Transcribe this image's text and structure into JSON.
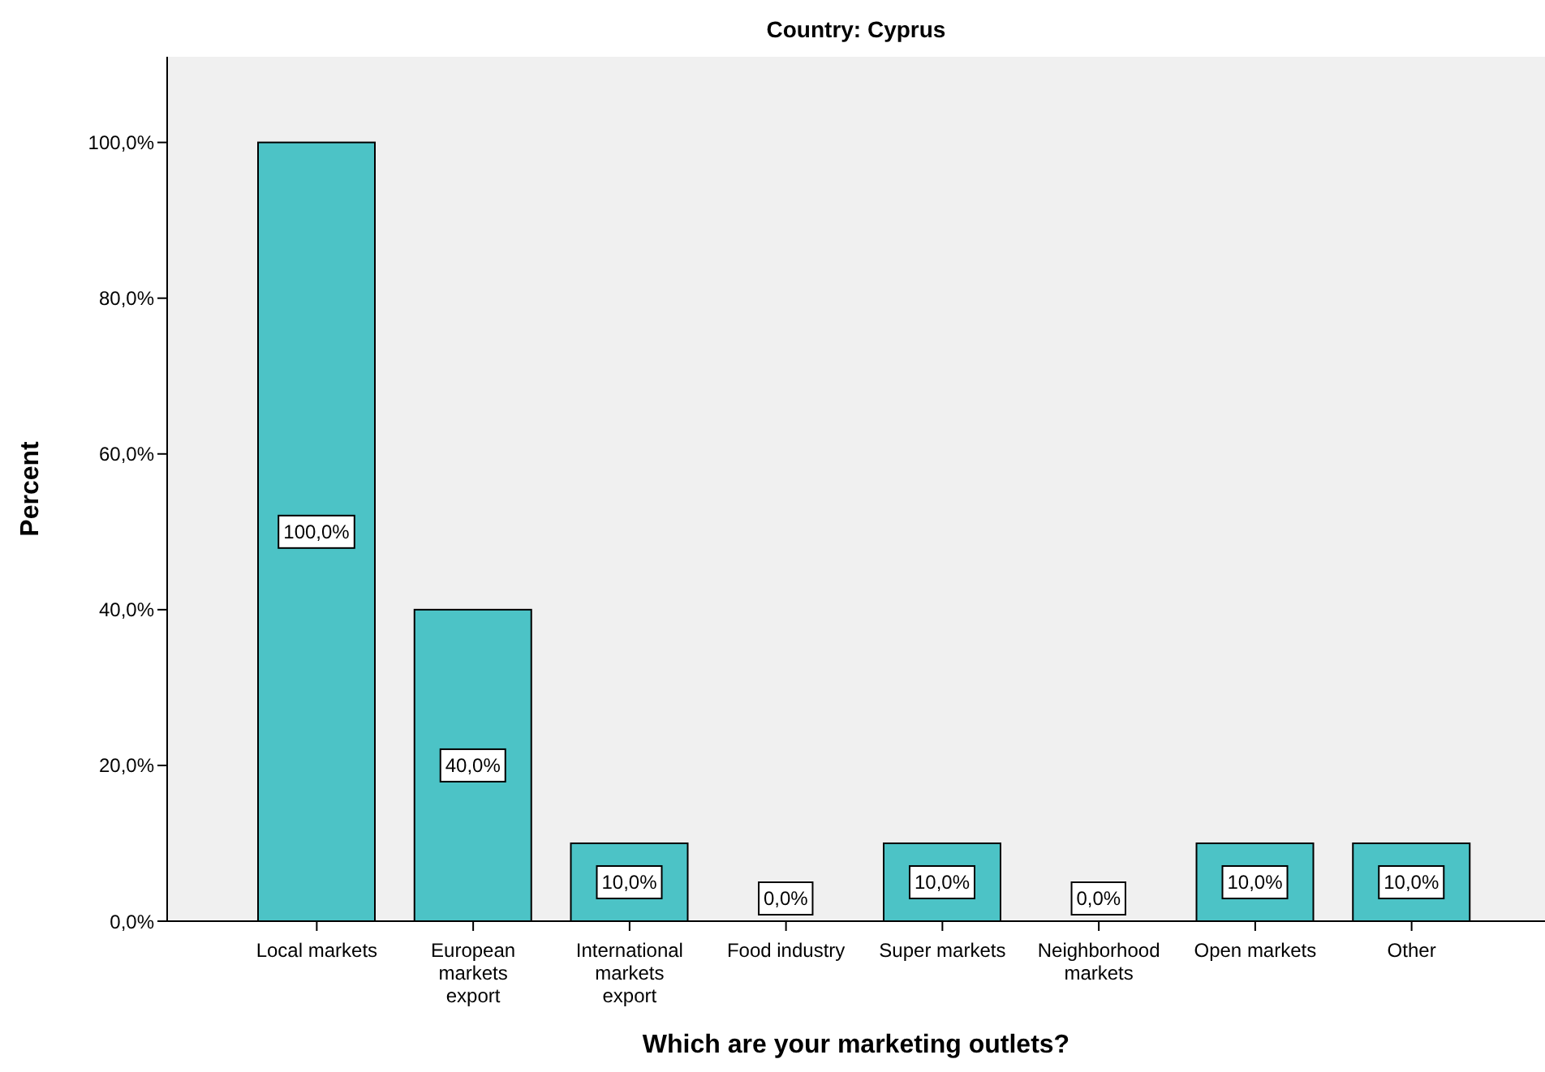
{
  "chart_data": {
    "type": "bar",
    "title": "Country: Cyprus",
    "xlabel": "Which are your marketing outlets?",
    "ylabel": "Percent",
    "categories": [
      "Local markets",
      "European markets export",
      "International markets export",
      "Food industry",
      "Super markets",
      "Neighborhood markets",
      "Open markets",
      "Other"
    ],
    "values": [
      100,
      40,
      10,
      0,
      10,
      0,
      10,
      10
    ],
    "value_labels": [
      "100,0%",
      "40,0%",
      "10,0%",
      "0,0%",
      "10,0%",
      "0,0%",
      "10,0%",
      "10,0%"
    ],
    "color": "#4cc3c6",
    "ylim": [
      0,
      111
    ],
    "yticks": [
      {
        "value": 0,
        "label": "0,0%"
      },
      {
        "value": 20,
        "label": "20,0%"
      },
      {
        "value": 40,
        "label": "40,0%"
      },
      {
        "value": 60,
        "label": "60,0%"
      },
      {
        "value": 80,
        "label": "80,0%"
      },
      {
        "value": 100,
        "label": "100,0%"
      }
    ],
    "grid": false,
    "legend": false
  }
}
